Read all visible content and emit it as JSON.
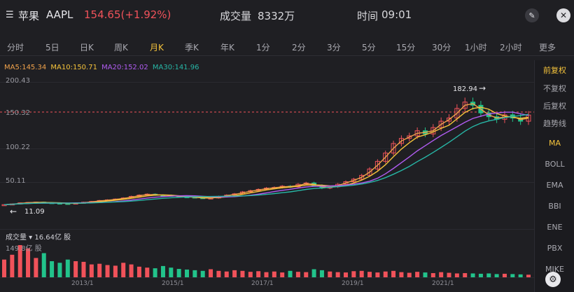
{
  "header": {
    "logo_glyph": "☰",
    "name": "苹果",
    "code": "AAPL",
    "price": "154.65(+1.92%)",
    "volume_label": "成交量",
    "volume_value": "8332万",
    "time_label": "时间",
    "time_value": "09:01"
  },
  "tabs": [
    {
      "label": "分时"
    },
    {
      "label": "5日"
    },
    {
      "label": "日K"
    },
    {
      "label": "周K"
    },
    {
      "label": "月K",
      "active": true
    },
    {
      "label": "季K"
    },
    {
      "label": "年K"
    },
    {
      "label": "1分"
    },
    {
      "label": "2分"
    },
    {
      "label": "3分"
    },
    {
      "label": "5分"
    },
    {
      "label": "15分"
    },
    {
      "label": "30分"
    },
    {
      "label": "1小时"
    },
    {
      "label": "2小时"
    },
    {
      "label": "更多"
    }
  ],
  "ma": {
    "ma5": "MA5:145.34",
    "ma10": "MA10:150.71",
    "ma20": "MA20:152.02",
    "ma30": "MA30:141.96"
  },
  "price_axis": {
    "top": "200.43",
    "ref": "150.32",
    "mid": "100.22",
    "low": "50.11"
  },
  "annotations": {
    "high": "182.94",
    "low": "11.09"
  },
  "side_menu": [
    {
      "label": "前复权",
      "active": true
    },
    {
      "label": "不复权"
    },
    {
      "label": "后复权"
    },
    {
      "label": "趋势线"
    },
    {
      "label": "MA",
      "active": true
    },
    {
      "label": "BOLL"
    },
    {
      "label": "EMA"
    },
    {
      "label": "BBI"
    },
    {
      "label": "ENE"
    },
    {
      "label": "PBX"
    },
    {
      "label": "MIKE"
    }
  ],
  "volume": {
    "label": "成交量 ▾ 16.64亿 股",
    "scale": "149.8亿 股"
  },
  "x_axis": [
    "2013/1",
    "2015/1",
    "2017/1",
    "2019/1",
    "2021/1"
  ],
  "colors": {
    "up": "#f0525a",
    "down": "#22c38b",
    "ma5": "#f0f0f0",
    "ma10": "#f5c33b",
    "ma20": "#b15cf2",
    "ma30": "#27b6a6",
    "accent": "#f5c33b"
  },
  "chart_data": {
    "type": "candlestick",
    "ylim": [
      0,
      200.43
    ],
    "high_marker": 182.94,
    "low_marker": 11.09,
    "reference_line": 150.32,
    "series_points": {
      "close": [
        14,
        15.2,
        16.8,
        17.5,
        18,
        17.2,
        16.5,
        16,
        15.8,
        16.5,
        17.8,
        19,
        20.5,
        21.5,
        22.8,
        24.5,
        27,
        29,
        30.5,
        29,
        28.8,
        27.5,
        26.5,
        26,
        25,
        24,
        24.5,
        27,
        29,
        31,
        34,
        36,
        38,
        40,
        41,
        43,
        42,
        46,
        48,
        44,
        40,
        42,
        46,
        50,
        54,
        60,
        70,
        82,
        95,
        110,
        118,
        122,
        130,
        125,
        135,
        145,
        150,
        165,
        175,
        170,
        158,
        152,
        148,
        155,
        150,
        145,
        154.65
      ]
    }
  }
}
